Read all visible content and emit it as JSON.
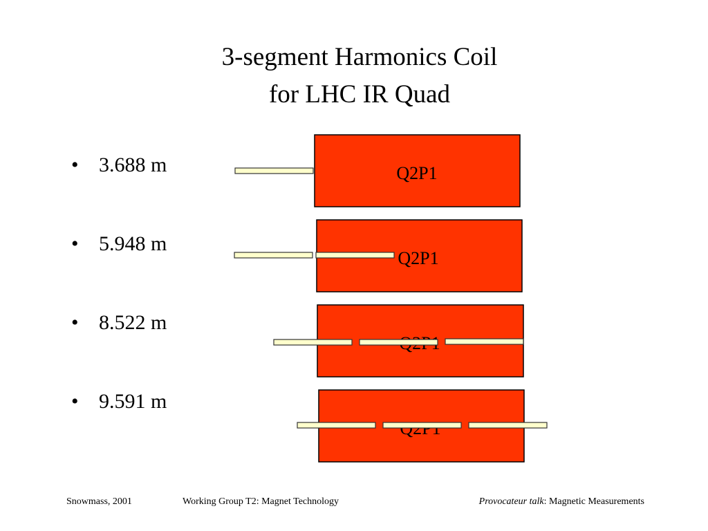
{
  "header": {
    "title": [
      "3-segment Harmonics Coil",
      "for LHC IR Quad"
    ]
  },
  "bullets": [
    "3.688 m",
    "5.948 m",
    "8.522 m",
    "9.591 m"
  ],
  "magnets": [
    {
      "label": "Q2P1"
    },
    {
      "label": "Q2P1"
    },
    {
      "label": "Q2P1"
    },
    {
      "label": "Q2P1"
    }
  ],
  "footer": {
    "left": "Snowmass, 2001",
    "center": "Working Group T2: Magnet Technology",
    "right_italic": "Provocateur talk",
    "right": ": Magnetic Measurements"
  }
}
